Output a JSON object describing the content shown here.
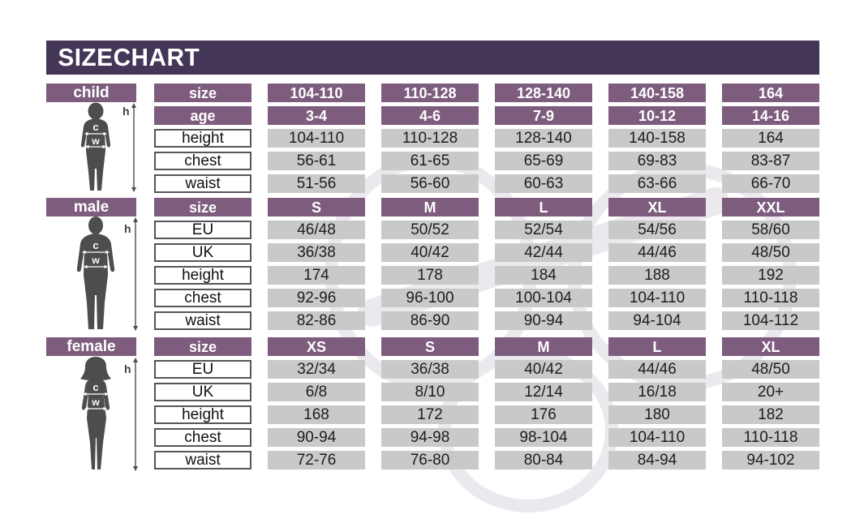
{
  "title": "SIZE CHART",
  "colors": {
    "title_bar": "#443657",
    "header_purple": "#7d5c7e",
    "data_gray": "#c9c9c9",
    "silhouette": "#4d4d4d",
    "label_border": "#57545a",
    "text": "#1e1e1e",
    "white": "#ffffff"
  },
  "figure_labels": {
    "height": "h",
    "chest": "c",
    "waist": "w"
  },
  "sections": [
    {
      "id": "child",
      "label": "child",
      "rows": [
        {
          "label": "size",
          "style": "purple",
          "values": [
            "104-110",
            "110-128",
            "128-140",
            "140-158",
            "164"
          ]
        },
        {
          "label": "age",
          "style": "purple",
          "values": [
            "3-4",
            "4-6",
            "7-9",
            "10-12",
            "14-16"
          ]
        },
        {
          "label": "height",
          "style": "plain",
          "values": [
            "104-110",
            "110-128",
            "128-140",
            "140-158",
            "164"
          ]
        },
        {
          "label": "chest",
          "style": "plain",
          "values": [
            "56-61",
            "61-65",
            "65-69",
            "69-83",
            "83-87"
          ]
        },
        {
          "label": "waist",
          "style": "plain",
          "values": [
            "51-56",
            "56-60",
            "60-63",
            "63-66",
            "66-70"
          ]
        }
      ]
    },
    {
      "id": "male",
      "label": "male",
      "rows": [
        {
          "label": "size",
          "style": "purple",
          "values": [
            "S",
            "M",
            "L",
            "XL",
            "XXL"
          ]
        },
        {
          "label": "EU",
          "style": "plain",
          "values": [
            "46/48",
            "50/52",
            "52/54",
            "54/56",
            "58/60"
          ]
        },
        {
          "label": "UK",
          "style": "plain",
          "values": [
            "36/38",
            "40/42",
            "42/44",
            "44/46",
            "48/50"
          ]
        },
        {
          "label": "height",
          "style": "plain",
          "values": [
            "174",
            "178",
            "184",
            "188",
            "192"
          ]
        },
        {
          "label": "chest",
          "style": "plain",
          "values": [
            "92-96",
            "96-100",
            "100-104",
            "104-110",
            "110-118"
          ]
        },
        {
          "label": "waist",
          "style": "plain",
          "values": [
            "82-86",
            "86-90",
            "90-94",
            "94-104",
            "104-112"
          ]
        }
      ]
    },
    {
      "id": "female",
      "label": "female",
      "rows": [
        {
          "label": "size",
          "style": "purple",
          "values": [
            "XS",
            "S",
            "M",
            "L",
            "XL"
          ]
        },
        {
          "label": "EU",
          "style": "plain",
          "values": [
            "32/34",
            "36/38",
            "40/42",
            "44/46",
            "48/50"
          ]
        },
        {
          "label": "UK",
          "style": "plain",
          "values": [
            "6/8",
            "8/10",
            "12/14",
            "16/18",
            "20+"
          ]
        },
        {
          "label": "height",
          "style": "plain",
          "values": [
            "168",
            "172",
            "176",
            "180",
            "182"
          ]
        },
        {
          "label": "chest",
          "style": "plain",
          "values": [
            "90-94",
            "94-98",
            "98-104",
            "104-110",
            "110-118"
          ]
        },
        {
          "label": "waist",
          "style": "plain",
          "values": [
            "72-76",
            "76-80",
            "80-84",
            "84-94",
            "94-102"
          ]
        }
      ]
    }
  ],
  "chart_data": [
    {
      "type": "table",
      "title": "child",
      "row_labels": [
        "size",
        "age",
        "height",
        "chest",
        "waist"
      ],
      "rows": [
        [
          "104-110",
          "110-128",
          "128-140",
          "140-158",
          "164"
        ],
        [
          "3-4",
          "4-6",
          "7-9",
          "10-12",
          "14-16"
        ],
        [
          "104-110",
          "110-128",
          "128-140",
          "140-158",
          "164"
        ],
        [
          "56-61",
          "61-65",
          "65-69",
          "69-83",
          "83-87"
        ],
        [
          "51-56",
          "56-60",
          "60-63",
          "63-66",
          "66-70"
        ]
      ]
    },
    {
      "type": "table",
      "title": "male",
      "row_labels": [
        "size",
        "EU",
        "UK",
        "height",
        "chest",
        "waist"
      ],
      "rows": [
        [
          "S",
          "M",
          "L",
          "XL",
          "XXL"
        ],
        [
          "46/48",
          "50/52",
          "52/54",
          "54/56",
          "58/60"
        ],
        [
          "36/38",
          "40/42",
          "42/44",
          "44/46",
          "48/50"
        ],
        [
          "174",
          "178",
          "184",
          "188",
          "192"
        ],
        [
          "92-96",
          "96-100",
          "100-104",
          "104-110",
          "110-118"
        ],
        [
          "82-86",
          "86-90",
          "90-94",
          "94-104",
          "104-112"
        ]
      ]
    },
    {
      "type": "table",
      "title": "female",
      "row_labels": [
        "size",
        "EU",
        "UK",
        "height",
        "chest",
        "waist"
      ],
      "rows": [
        [
          "XS",
          "S",
          "M",
          "L",
          "XL"
        ],
        [
          "32/34",
          "36/38",
          "40/42",
          "44/46",
          "48/50"
        ],
        [
          "6/8",
          "8/10",
          "12/14",
          "16/18",
          "20+"
        ],
        [
          "168",
          "172",
          "176",
          "180",
          "182"
        ],
        [
          "90-94",
          "94-98",
          "98-104",
          "104-110",
          "110-118"
        ],
        [
          "72-76",
          "76-80",
          "80-84",
          "84-94",
          "94-102"
        ]
      ]
    }
  ]
}
